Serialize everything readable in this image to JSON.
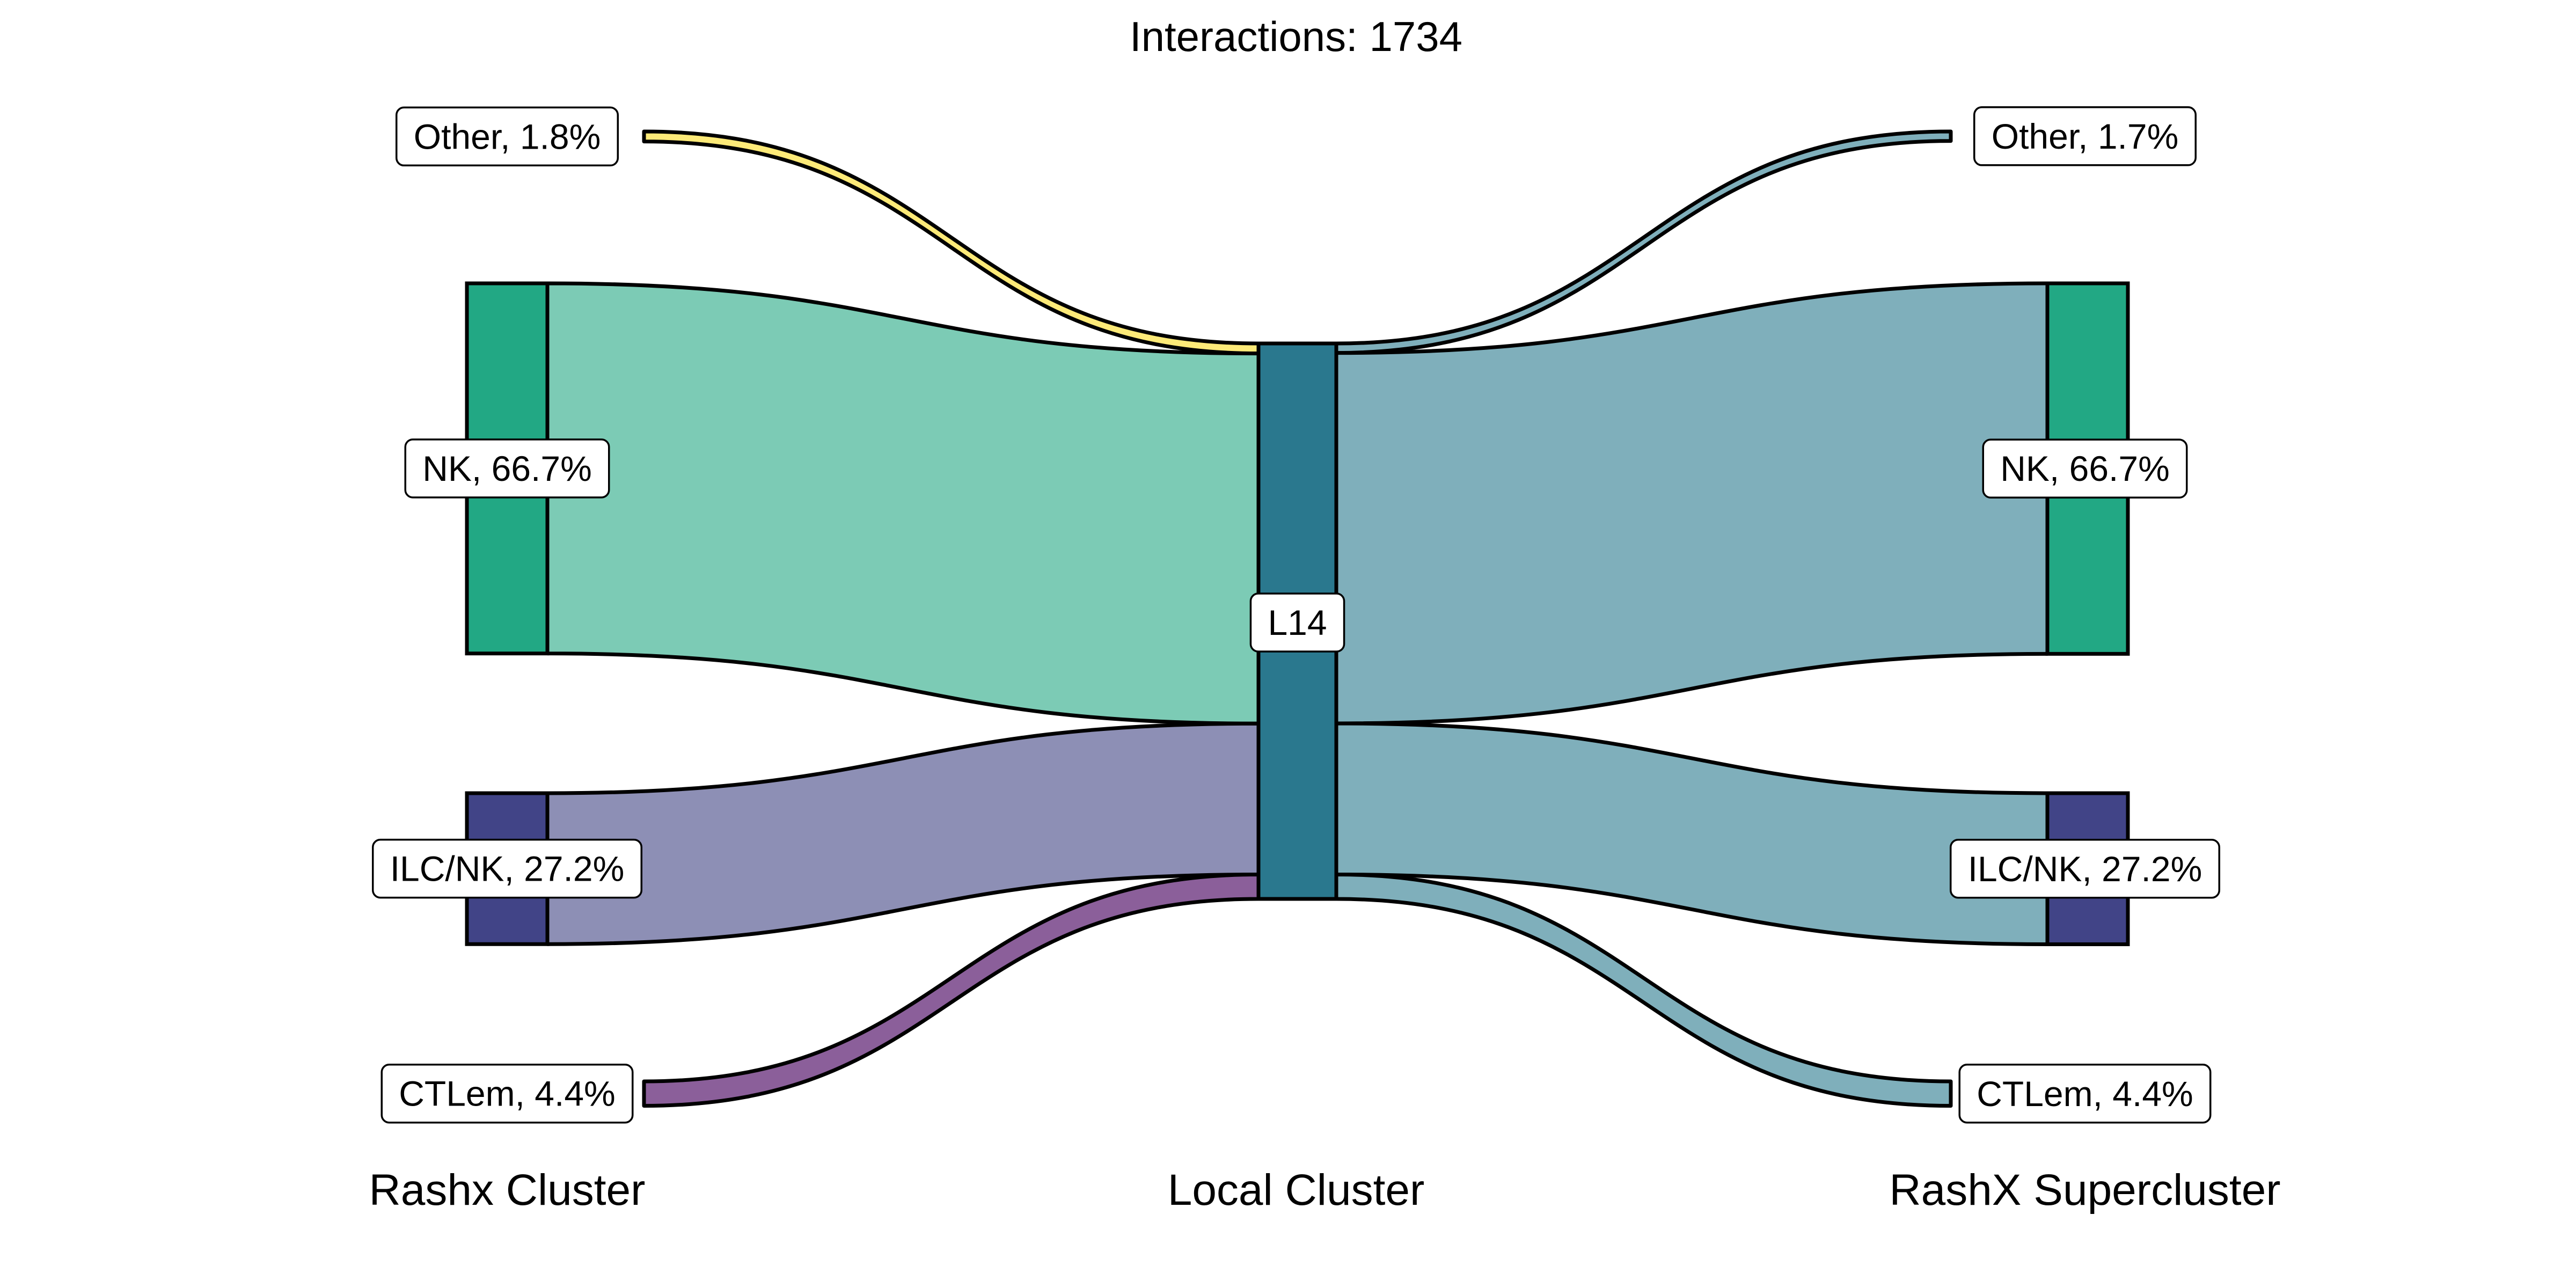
{
  "chart_data": {
    "type": "sankey",
    "title": "Interactions: 1734",
    "axes": [
      {
        "key": "left",
        "label": "Rashx Cluster"
      },
      {
        "key": "middle",
        "label": "Local Cluster"
      },
      {
        "key": "right",
        "label": "RashX Supercluster"
      }
    ],
    "middle_node": {
      "label": "L14",
      "color": "#2a788e"
    },
    "left_nodes": [
      {
        "key": "other",
        "label": "Other, 1.8%",
        "percent": 1.8,
        "color": "#fde725",
        "flow_color": "#fdea78"
      },
      {
        "key": "nk",
        "label": "NK, 66.7%",
        "percent": 66.7,
        "color": "#22a884",
        "flow_color": "#7ccbb5"
      },
      {
        "key": "ilcnk",
        "label": "ILC/NK, 27.2%",
        "percent": 27.2,
        "color": "#414487",
        "flow_color": "#8d8fb5"
      },
      {
        "key": "ctlem",
        "label": "CTLem, 4.4%",
        "percent": 4.4,
        "color": "#8b5f9a",
        "flow_color": "#8b5f9a"
      }
    ],
    "right_nodes": [
      {
        "key": "other",
        "label": "Other, 1.7%",
        "percent": 1.7,
        "color": "#7fafbb",
        "flow_color": "#7fafbb"
      },
      {
        "key": "nk",
        "label": "NK, 66.7%",
        "percent": 66.7,
        "color": "#22a884",
        "flow_color": "#7fafbb"
      },
      {
        "key": "ilcnk",
        "label": "ILC/NK, 27.2%",
        "percent": 27.2,
        "color": "#414487",
        "flow_color": "#7fafbb"
      },
      {
        "key": "ctlem",
        "label": "CTLem, 4.4%",
        "percent": 4.4,
        "color": "#7fafbb",
        "flow_color": "#7fafbb"
      }
    ],
    "show_node_bar": {
      "left": [
        "nk",
        "ilcnk"
      ],
      "right": [
        "nk",
        "ilcnk"
      ]
    }
  }
}
